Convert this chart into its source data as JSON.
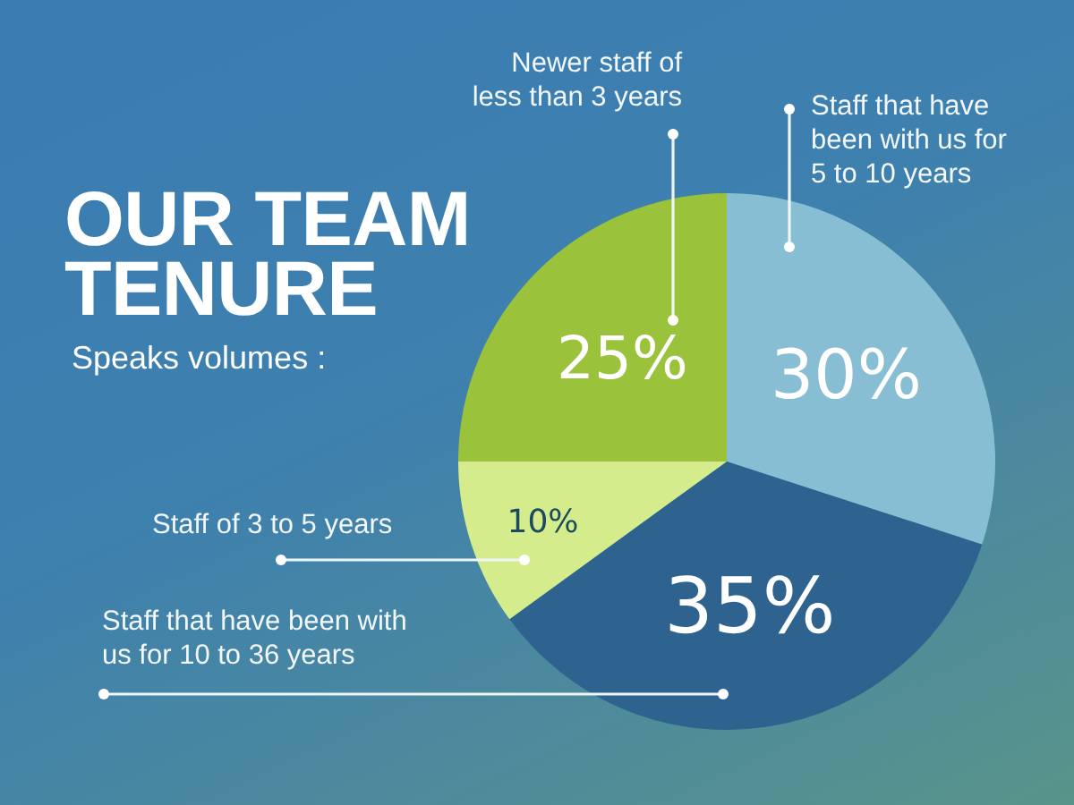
{
  "chart_data": {
    "type": "pie",
    "title": "OUR TEAM TENURE",
    "subtitle": "Speaks volumes :",
    "categories": [
      "Staff that have been with us for 5 to 10 years",
      "Staff that have been with us for 10 to 36 years",
      "Staff of 3 to 5 years",
      "Newer staff of less than 3 years"
    ],
    "values": [
      30,
      35,
      10,
      25
    ],
    "colors": [
      "#88bed3",
      "#2d638e",
      "#d4ec8c",
      "#9ac23b"
    ],
    "value_labels": [
      "30%",
      "35%",
      "10%",
      "25%"
    ]
  }
}
